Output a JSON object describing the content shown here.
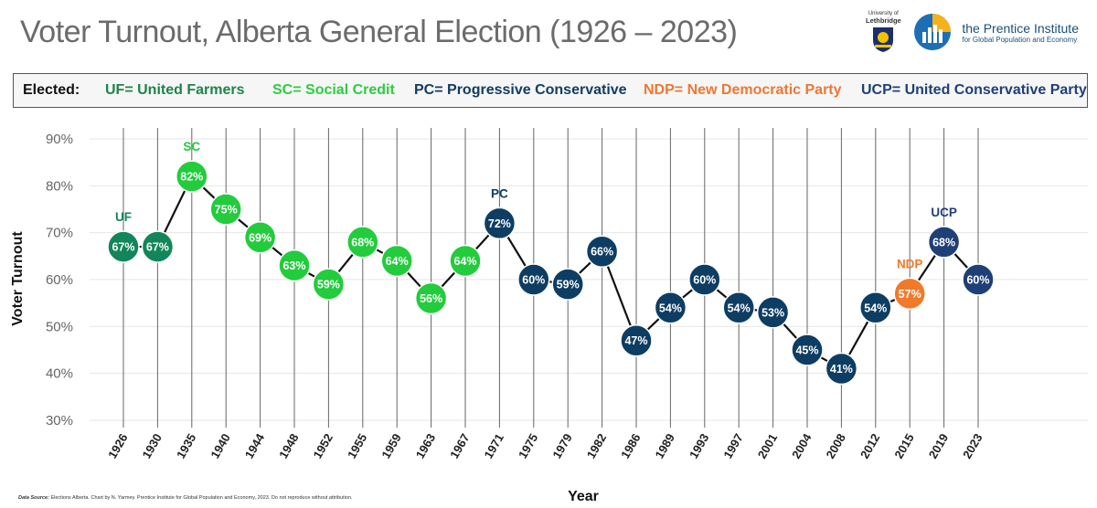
{
  "header": {
    "title": "Voter Turnout, Alberta General Election (1926 – 2023)",
    "uleth_small": "University of",
    "uleth_name": "Lethbridge",
    "prentice_name": "the Prentice Institute",
    "prentice_sub": "for Global Population and Economy"
  },
  "legend": {
    "label": "Elected:",
    "items": [
      {
        "text": "UF= United Farmers",
        "color": "#1e8449"
      },
      {
        "text": "SC= Social Credit",
        "color": "#2ecc40"
      },
      {
        "text": "PC= Progressive Conservative",
        "color": "#123d63"
      },
      {
        "text": "NDP= New Democratic Party",
        "color": "#ee7733"
      },
      {
        "text": "UCP= United Conservative Party",
        "color": "#1f3f77"
      }
    ]
  },
  "source": {
    "label": "Data Source:",
    "text": "Elections Alberta. Chart by N. Yarmey. Prentice Institute for Global Population and Economy, 2023. Do not reproduce without attribution."
  },
  "chart_data": {
    "type": "line",
    "xlabel": "Year",
    "ylabel": "Voter Turnout",
    "ylim": [
      30,
      90
    ],
    "yticks": [
      "30%",
      "40%",
      "50%",
      "60%",
      "70%",
      "80%",
      "90%"
    ],
    "grid": true,
    "party_colors": {
      "UF": "#12865a",
      "SC": "#22cc3c",
      "PC": "#0e3d63",
      "NDP": "#f07a2a",
      "UCP": "#1f3f77"
    },
    "points": [
      {
        "year": "1926",
        "value": 67,
        "label": "67%",
        "party": "UF",
        "annotation": "UF"
      },
      {
        "year": "1930",
        "value": 67,
        "label": "67%",
        "party": "UF",
        "annotation": ""
      },
      {
        "year": "1935",
        "value": 82,
        "label": "82%",
        "party": "SC",
        "annotation": "SC"
      },
      {
        "year": "1940",
        "value": 75,
        "label": "75%",
        "party": "SC",
        "annotation": ""
      },
      {
        "year": "1944",
        "value": 69,
        "label": "69%",
        "party": "SC",
        "annotation": ""
      },
      {
        "year": "1948",
        "value": 63,
        "label": "63%",
        "party": "SC",
        "annotation": ""
      },
      {
        "year": "1952",
        "value": 59,
        "label": "59%",
        "party": "SC",
        "annotation": ""
      },
      {
        "year": "1955",
        "value": 68,
        "label": "68%",
        "party": "SC",
        "annotation": ""
      },
      {
        "year": "1959",
        "value": 64,
        "label": "64%",
        "party": "SC",
        "annotation": ""
      },
      {
        "year": "1963",
        "value": 56,
        "label": "56%",
        "party": "SC",
        "annotation": ""
      },
      {
        "year": "1967",
        "value": 64,
        "label": "64%",
        "party": "SC",
        "annotation": ""
      },
      {
        "year": "1971",
        "value": 72,
        "label": "72%",
        "party": "PC",
        "annotation": "PC"
      },
      {
        "year": "1975",
        "value": 60,
        "label": "60%",
        "party": "PC",
        "annotation": ""
      },
      {
        "year": "1979",
        "value": 59,
        "label": "59%",
        "party": "PC",
        "annotation": ""
      },
      {
        "year": "1982",
        "value": 66,
        "label": "66%",
        "party": "PC",
        "annotation": ""
      },
      {
        "year": "1986",
        "value": 47,
        "label": "47%",
        "party": "PC",
        "annotation": ""
      },
      {
        "year": "1989",
        "value": 54,
        "label": "54%",
        "party": "PC",
        "annotation": ""
      },
      {
        "year": "1993",
        "value": 60,
        "label": "60%",
        "party": "PC",
        "annotation": ""
      },
      {
        "year": "1997",
        "value": 54,
        "label": "54%",
        "party": "PC",
        "annotation": ""
      },
      {
        "year": "2001",
        "value": 53,
        "label": "53%",
        "party": "PC",
        "annotation": ""
      },
      {
        "year": "2004",
        "value": 45,
        "label": "45%",
        "party": "PC",
        "annotation": ""
      },
      {
        "year": "2008",
        "value": 41,
        "label": "41%",
        "party": "PC",
        "annotation": ""
      },
      {
        "year": "2012",
        "value": 54,
        "label": "54%",
        "party": "PC",
        "annotation": ""
      },
      {
        "year": "2015",
        "value": 57,
        "label": "57%",
        "party": "NDP",
        "annotation": "NDP"
      },
      {
        "year": "2019",
        "value": 68,
        "label": "68%",
        "party": "UCP",
        "annotation": "UCP"
      },
      {
        "year": "2023",
        "value": 60,
        "label": "60%",
        "party": "UCP",
        "annotation": ""
      }
    ]
  }
}
